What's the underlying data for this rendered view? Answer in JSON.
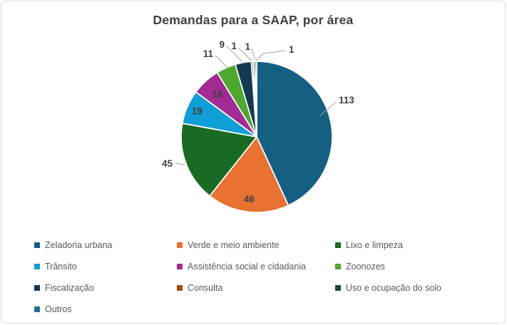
{
  "window": {
    "background": "#ffffff",
    "border_color": "#d9d9d9"
  },
  "chart_data": {
    "type": "pie",
    "title": "Demandas para a SAAP, por área",
    "categories": [
      "Zeladoria urbana",
      "Verde e meio ambiente",
      "Lixo e limpeza",
      "Trânsito",
      "Assistência social e cidadania",
      "Zoonozes",
      "Fiscalização",
      "Consulta",
      "Uso e ocupação do solo",
      "Outros"
    ],
    "values": [
      113,
      46,
      45,
      19,
      16,
      11,
      9,
      1,
      1,
      1
    ],
    "colors": [
      "#156082",
      "#E97132",
      "#196B24",
      "#0F9ED5",
      "#A02B93",
      "#4EA72E",
      "#133A50",
      "#A34D14",
      "#13511B",
      "#21708F"
    ],
    "start_angle_deg": 0,
    "direction": "clockwise",
    "slice_border_color": "#FFFFFF",
    "label_color": "#404040",
    "leader_line_color": "#A6A6A6",
    "title_color": "#404040",
    "legend": {
      "position": "bottom",
      "columns": 3,
      "text_color": "#595959"
    }
  }
}
